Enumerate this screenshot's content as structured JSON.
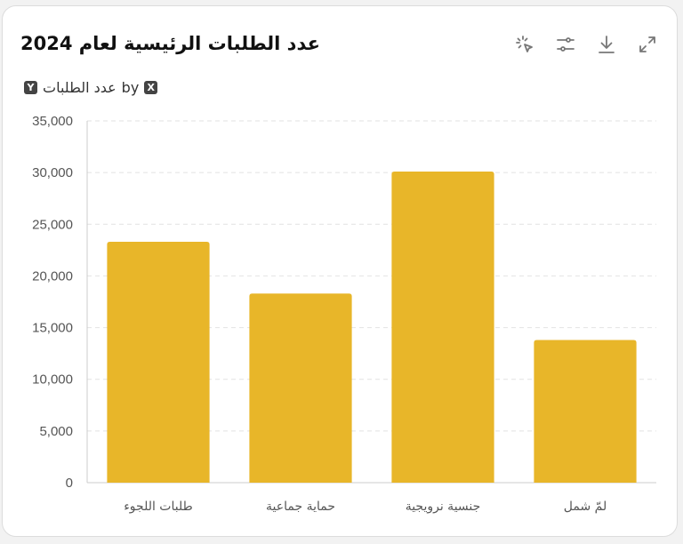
{
  "card": {
    "title": "عدد الطلبات الرئيسية لعام 2024",
    "axis_caption": {
      "y_badge": "Y",
      "y_label": "عدد الطلبات",
      "by_word": "by",
      "x_badge": "X"
    }
  },
  "toolbar": {
    "icons": [
      "magic-cursor-icon",
      "sliders-icon",
      "download-icon",
      "expand-icon"
    ]
  },
  "chart_data": {
    "type": "bar",
    "categories": [
      "طلبات اللجوء",
      "حماية جماعية",
      "جنسية نرويجية",
      "لمّ شمل"
    ],
    "values": [
      23300,
      18300,
      30100,
      13800
    ],
    "ylim": [
      0,
      35000
    ],
    "yticks": [
      0,
      5000,
      10000,
      15000,
      20000,
      25000,
      30000,
      35000
    ],
    "ytick_labels": [
      "0",
      "5,000",
      "10,000",
      "15,000",
      "20,000",
      "25,000",
      "30,000",
      "35,000"
    ],
    "grid": true,
    "color": "#e8b629",
    "axis_color": "#cccccc",
    "grid_color": "#e2e2e2"
  }
}
